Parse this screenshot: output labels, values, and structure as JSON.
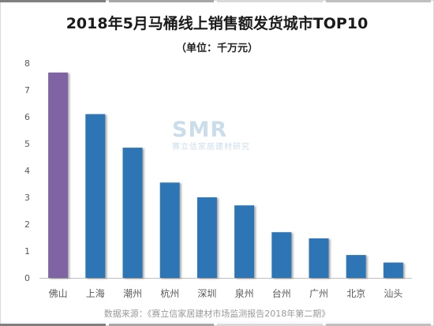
{
  "chart_data": {
    "type": "bar",
    "title": "2018年5月马桶线上销售额发货城市TOP10",
    "subtitle": "（单位：千万元）",
    "categories": [
      "佛山",
      "上海",
      "潮州",
      "杭州",
      "深圳",
      "泉州",
      "台州",
      "广州",
      "北京",
      "汕头"
    ],
    "values": [
      7.65,
      6.1,
      4.85,
      3.55,
      3.0,
      2.7,
      1.7,
      1.47,
      0.85,
      0.57
    ],
    "ylim": [
      0,
      8
    ],
    "yticks": [
      "0",
      "1",
      "2",
      "3",
      "4",
      "5",
      "6",
      "7",
      "8"
    ],
    "xlabel": "",
    "ylabel": "",
    "grid": false,
    "colors": {
      "highlight": "#8064a2",
      "default": "#2e75b6",
      "axis": "#bfbfbf",
      "tick_label": "#595959"
    },
    "highlight_index": 0
  },
  "watermark": {
    "logo": "SMR",
    "text": "赛立信家居建材研究"
  },
  "source": "数据来源：《赛立信家居建材市场监测报告2018年第二期》",
  "decor": {
    "top_strip_colors": [
      "#7f7f7f",
      "#a6a6a6",
      "#d9d9d9",
      "#bfbfbf"
    ],
    "bottom_strip_colors": [
      "#7f7f7f",
      "#a6a6a6",
      "#d9d9d9",
      "#bfbfbf"
    ]
  }
}
